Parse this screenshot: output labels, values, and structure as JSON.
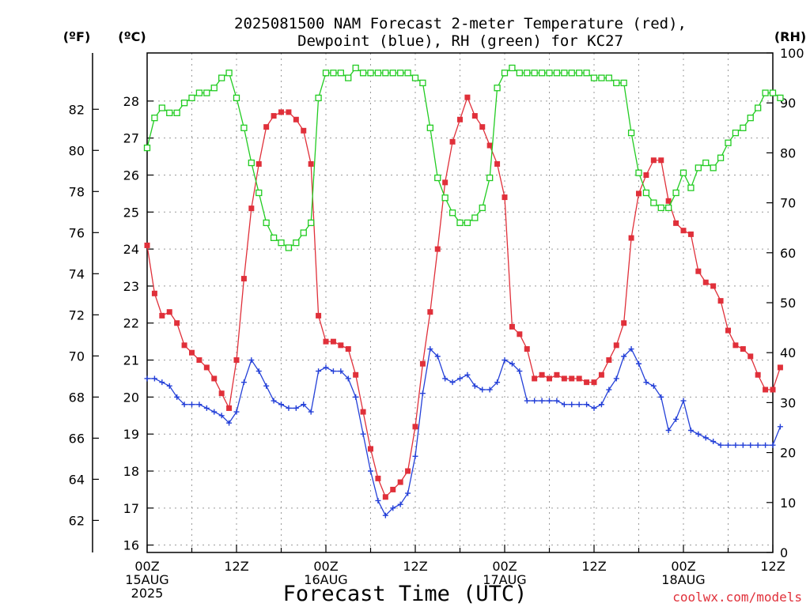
{
  "chart_data": {
    "type": "line",
    "title_lines": [
      "2025081500 NAM Forecast 2-meter Temperature (red),",
      "Dewpoint (blue), RH (green) for KC27"
    ],
    "xlabel": "Forecast Time (UTC)",
    "credit": "coolwx.com/models",
    "axes": {
      "fahrenheit": {
        "unit_label": "(ºF)",
        "ticks": [
          62,
          64,
          66,
          68,
          70,
          72,
          74,
          76,
          78,
          80,
          82
        ]
      },
      "celsius": {
        "unit_label": "(ºC)",
        "ylim": [
          15.8,
          29.3
        ],
        "ticks": [
          16,
          17,
          18,
          19,
          20,
          21,
          22,
          23,
          24,
          25,
          26,
          27,
          28
        ]
      },
      "rh": {
        "unit_label": "(RH)",
        "ylim": [
          0,
          100
        ],
        "ticks": [
          0,
          10,
          20,
          30,
          40,
          50,
          60,
          70,
          80,
          90,
          100
        ]
      }
    },
    "x_range_hours": [
      0,
      84
    ],
    "x_ticks": [
      {
        "hour": 0,
        "lines": [
          "00Z",
          "15AUG",
          "2025"
        ]
      },
      {
        "hour": 12,
        "lines": [
          "12Z"
        ]
      },
      {
        "hour": 24,
        "lines": [
          "00Z",
          "16AUG"
        ]
      },
      {
        "hour": 36,
        "lines": [
          "12Z"
        ]
      },
      {
        "hour": 48,
        "lines": [
          "00Z",
          "17AUG"
        ]
      },
      {
        "hour": 60,
        "lines": [
          "12Z"
        ]
      },
      {
        "hour": 72,
        "lines": [
          "00Z",
          "18AUG"
        ]
      },
      {
        "hour": 84,
        "lines": [
          "12Z"
        ]
      }
    ],
    "grid": true,
    "series": [
      {
        "name": "Temperature",
        "axis": "celsius",
        "color": "#e0303a",
        "marker": "filled-square",
        "values": [
          24.1,
          22.8,
          22.2,
          22.3,
          22.0,
          21.4,
          21.2,
          21.0,
          20.8,
          20.5,
          20.1,
          19.7,
          21.0,
          23.2,
          25.1,
          26.3,
          27.3,
          27.6,
          27.7,
          27.7,
          27.5,
          27.2,
          26.3,
          22.2,
          21.5,
          21.5,
          21.4,
          21.3,
          20.6,
          19.6,
          18.6,
          17.8,
          17.3,
          17.5,
          17.7,
          18.0,
          19.2,
          20.9,
          22.3,
          24.0,
          25.8,
          26.9,
          27.5,
          28.1,
          27.6,
          27.3,
          26.8,
          26.3,
          25.4,
          21.9,
          21.7,
          21.3,
          20.5,
          20.6,
          20.5,
          20.6,
          20.5,
          20.5,
          20.5,
          20.4,
          20.4,
          20.6,
          21.0,
          21.4,
          22.0,
          24.3,
          25.5,
          26.0,
          26.4,
          26.4,
          25.3,
          24.7,
          24.5,
          24.4,
          23.4,
          23.1,
          23.0,
          22.6,
          21.8,
          21.4,
          21.3,
          21.1,
          20.6,
          20.2,
          20.2,
          20.8
        ]
      },
      {
        "name": "Dewpoint",
        "axis": "celsius",
        "color": "#2440d8",
        "marker": "plus",
        "values": [
          20.5,
          20.5,
          20.4,
          20.3,
          20.0,
          19.8,
          19.8,
          19.8,
          19.7,
          19.6,
          19.5,
          19.3,
          19.6,
          20.4,
          21.0,
          20.7,
          20.3,
          19.9,
          19.8,
          19.7,
          19.7,
          19.8,
          19.6,
          20.7,
          20.8,
          20.7,
          20.7,
          20.5,
          20.0,
          19.0,
          18.0,
          17.2,
          16.8,
          17.0,
          17.1,
          17.4,
          18.4,
          20.1,
          21.3,
          21.1,
          20.5,
          20.4,
          20.5,
          20.6,
          20.3,
          20.2,
          20.2,
          20.4,
          21.0,
          20.9,
          20.7,
          19.9,
          19.9,
          19.9,
          19.9,
          19.9,
          19.8,
          19.8,
          19.8,
          19.8,
          19.7,
          19.8,
          20.2,
          20.5,
          21.1,
          21.3,
          20.9,
          20.4,
          20.3,
          20.0,
          19.1,
          19.4,
          19.9,
          19.1,
          19.0,
          18.9,
          18.8,
          18.7,
          18.7,
          18.7,
          18.7,
          18.7,
          18.7,
          18.7,
          18.7,
          19.2
        ]
      },
      {
        "name": "RH",
        "axis": "rh",
        "color": "#22cc22",
        "marker": "open-square",
        "values": [
          81,
          87,
          89,
          88,
          88,
          90,
          91,
          92,
          92,
          93,
          95,
          96,
          91,
          85,
          78,
          72,
          66,
          63,
          62,
          61,
          62,
          64,
          66,
          91,
          96,
          96,
          96,
          95,
          97,
          96,
          96,
          96,
          96,
          96,
          96,
          96,
          95,
          94,
          85,
          75,
          71,
          68,
          66,
          66,
          67,
          69,
          75,
          93,
          96,
          97,
          96,
          96,
          96,
          96,
          96,
          96,
          96,
          96,
          96,
          96,
          95,
          95,
          95,
          94,
          94,
          84,
          76,
          72,
          70,
          69,
          69,
          72,
          76,
          73,
          77,
          78,
          77,
          79,
          82,
          84,
          85,
          87,
          89,
          92,
          92,
          91
        ]
      }
    ]
  }
}
